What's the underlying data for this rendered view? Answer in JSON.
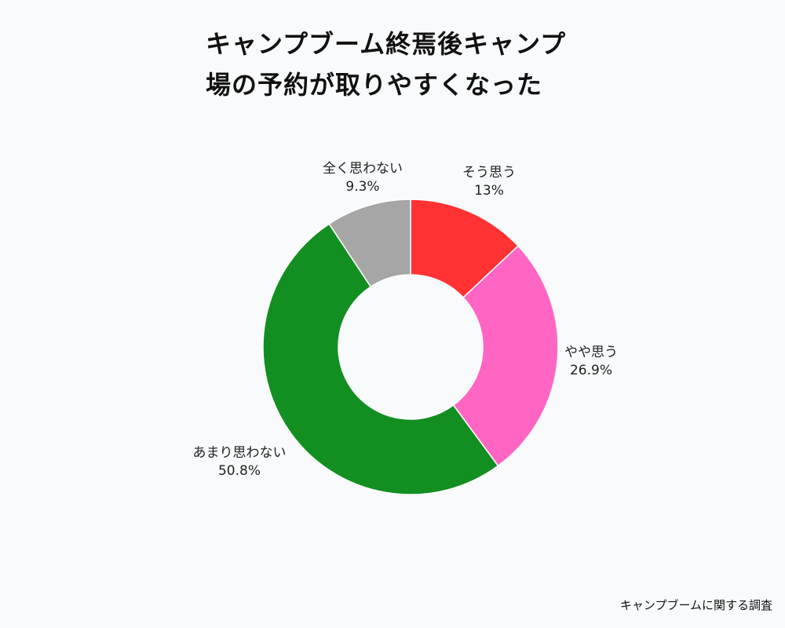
{
  "chart_data": {
    "type": "pie",
    "style": "donut",
    "title_lines": [
      "キャンプブーム終焉後キャンプ",
      "場の予約が取りやすくなった"
    ],
    "categories": [
      "そう思う",
      "やや思う",
      "あまり思わない",
      "全く思わない"
    ],
    "values": [
      13,
      26.9,
      50.8,
      9.3
    ],
    "value_labels": [
      "13%",
      "26.9%",
      "50.8%",
      "9.3%"
    ],
    "colors": [
      "#ff3333",
      "#ff66c4",
      "#138f22",
      "#a6a6a6"
    ],
    "start_angle": "12 o'clock",
    "direction": "clockwise",
    "legend": "none (labels on chart)"
  },
  "source_text": "キャンプブームに関する調査"
}
